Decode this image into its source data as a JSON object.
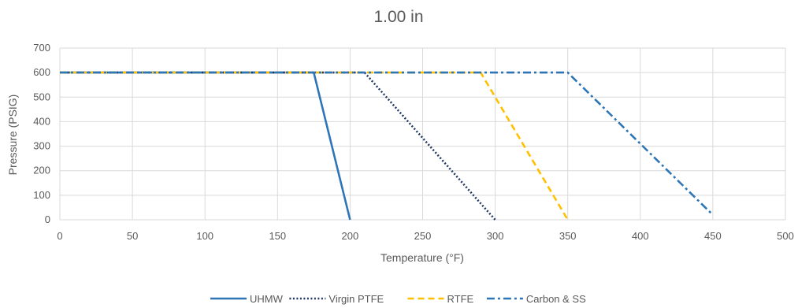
{
  "chart_data": {
    "type": "line",
    "title": "1.00 in",
    "xlabel": "Temperature (°F)",
    "ylabel": "Pressure (PSIG)",
    "xlim": [
      0,
      500
    ],
    "ylim": [
      0,
      700
    ],
    "x_ticks": [
      0,
      50,
      100,
      150,
      200,
      250,
      300,
      350,
      400,
      450,
      500
    ],
    "y_ticks": [
      0,
      100,
      200,
      300,
      400,
      500,
      600,
      700
    ],
    "grid": true,
    "legend_position": "bottom",
    "series": [
      {
        "name": "UHMW",
        "color": "#2E75B6",
        "dash": "solid",
        "points": [
          [
            0,
            600
          ],
          [
            175,
            600
          ],
          [
            200,
            0
          ]
        ]
      },
      {
        "name": "Virgin PTFE",
        "color": "#203864",
        "dash": "dotted",
        "points": [
          [
            0,
            600
          ],
          [
            210,
            600
          ],
          [
            300,
            0
          ]
        ]
      },
      {
        "name": "RTFE",
        "color": "#FFC000",
        "dash": "dashed",
        "points": [
          [
            0,
            600
          ],
          [
            290,
            600
          ],
          [
            350,
            0
          ]
        ]
      },
      {
        "name": "Carbon & SS",
        "color": "#2E75B6",
        "dash": "dashdot",
        "points": [
          [
            0,
            600
          ],
          [
            350,
            600
          ],
          [
            450,
            20
          ]
        ]
      }
    ]
  }
}
